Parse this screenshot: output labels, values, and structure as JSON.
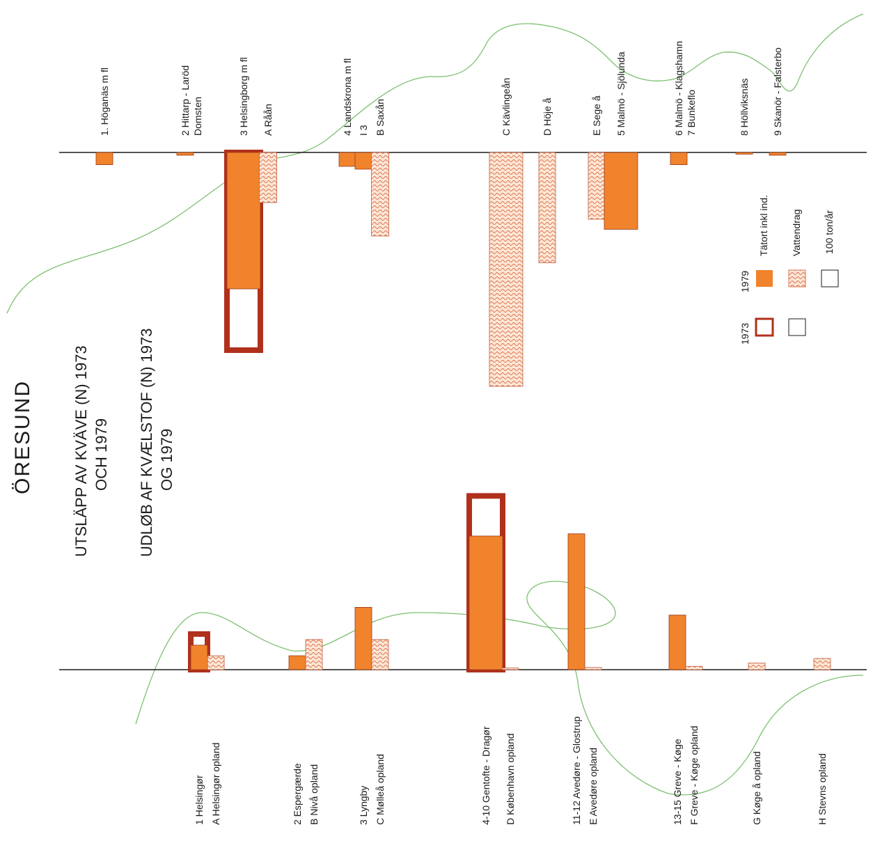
{
  "header": {
    "title": "ÖRESUND",
    "title_se_line1": "UTSLÄPP AV KVÄVE (N) 1973",
    "title_se_line2": "OCH 1979",
    "title_dk_line1": "UDLØB AF KVÆLSTOF (N) 1973",
    "title_dk_line2": "OG 1979"
  },
  "legend": {
    "year_1973": "1973",
    "year_1979": "1979",
    "tatort_label": "Tätort inkl ind.",
    "vattendrag_label": "Vattendrag",
    "scale_label": "100 ton/år",
    "scale_value_ton": 100
  },
  "colors": {
    "urban_1979": "#f0832c",
    "outline_1973": "#b0301c",
    "river_wave": "#e0714d",
    "river_fill": "#fbe7d6",
    "coastline": "#7cc070",
    "axis": "#1a1a1a"
  },
  "chart_data": [
    {
      "type": "bar",
      "panel": "Sweden",
      "unit": "ton/år",
      "categories": [
        {
          "label": "1. Höganäs m fl",
          "kind": "urban",
          "value_1979": 22
        },
        {
          "label": "2 Hittarp - Laröd",
          "label2": "Domsten",
          "kind": "urban",
          "value_1979": 5
        },
        {
          "label": "3 Helsingborg m fl",
          "kind": "urban",
          "value_1979": 245,
          "value_1973": 355
        },
        {
          "label": "A Råån",
          "kind": "river",
          "value": 90
        },
        {
          "label": "4 Landskrona m fl",
          "kind": "urban",
          "value_1979": 25
        },
        {
          "label": "I 3",
          "kind": "urban",
          "value_1979": 30
        },
        {
          "label": "B Saxån",
          "kind": "river",
          "value": 150
        },
        {
          "label": "C Kävlingeån",
          "kind": "river",
          "value": 420
        },
        {
          "label": "D Höje å",
          "kind": "river",
          "value": 198
        },
        {
          "label": "E Sege å",
          "kind": "river",
          "value": 120
        },
        {
          "label": "5 Malmö - Sjölunda",
          "kind": "urban",
          "value_1979": 138
        },
        {
          "label": "6 Malmö - Klagshamn",
          "label2": "7 Bunkeflo",
          "kind": "urban",
          "value_1979": 22
        },
        {
          "label": "8 Höllviksnäs",
          "kind": "urban",
          "value_1979": 3
        },
        {
          "label": "9 Skanör - Falsterbo",
          "kind": "urban",
          "value_1979": 5
        }
      ]
    },
    {
      "type": "bar",
      "panel": "Denmark",
      "unit": "ton/år",
      "categories": [
        {
          "label": "1 Helsingør",
          "kind": "urban",
          "value_1979": 44,
          "value_1973": 64
        },
        {
          "label": "A Helsingør opland",
          "kind": "river",
          "value": 25
        },
        {
          "label": "2 Espergærde",
          "kind": "urban",
          "value_1979": 25
        },
        {
          "label": "B Nivå opland",
          "kind": "river",
          "value": 54
        },
        {
          "label": "3 Lyngby",
          "kind": "urban",
          "value_1979": 112
        },
        {
          "label": "C Mølleå opland",
          "kind": "river",
          "value": 54
        },
        {
          "label": "4-10 Gentofte - Dragør",
          "kind": "urban",
          "value_1979": 240,
          "value_1973": 312
        },
        {
          "label": "D København opland",
          "kind": "river",
          "value": 3
        },
        {
          "label": "11-12 Avedøre - Glostrup",
          "kind": "urban",
          "value_1979": 244
        },
        {
          "label": "E Avedøre opland",
          "kind": "river",
          "value": 4
        },
        {
          "label": "13-15 Greve - Køge",
          "kind": "urban",
          "value_1979": 98
        },
        {
          "label": "F Greve - Køge opland",
          "kind": "river",
          "value": 6
        },
        {
          "label": "G Køge å opland",
          "kind": "river",
          "value": 12
        },
        {
          "label": "H Stevns opland",
          "kind": "river",
          "value": 20
        }
      ]
    }
  ]
}
